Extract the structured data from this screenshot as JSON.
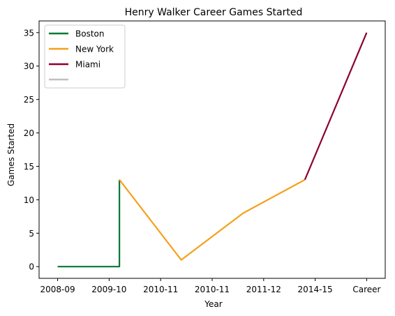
{
  "chart_data": {
    "type": "line",
    "title": "Henry Walker  Career Games Started",
    "xlabel": "Year",
    "ylabel": "Games Started",
    "x_tick_labels": [
      "2008-09",
      "2009-10",
      "2010-11",
      "2010-11",
      "2011-12",
      "2014-15",
      "Career"
    ],
    "ylim": [
      -1.75,
      36.75
    ],
    "y_ticks": [
      0,
      5,
      10,
      15,
      20,
      25,
      30,
      35
    ],
    "grid": false,
    "legend_position": "top-left",
    "series": [
      {
        "name": "Boston",
        "color": "#007A33",
        "points": [
          [
            0,
            0
          ],
          [
            0.5,
            0
          ],
          [
            1,
            0
          ],
          [
            1,
            13
          ]
        ]
      },
      {
        "name": "New York",
        "color": "#F5A01A",
        "points": [
          [
            1,
            13
          ],
          [
            2,
            1
          ],
          [
            3,
            8
          ],
          [
            4,
            13
          ]
        ]
      },
      {
        "name": "Miami",
        "color": "#8B0035",
        "points": [
          [
            4,
            13
          ],
          [
            5,
            35
          ]
        ]
      },
      {
        "name": "",
        "color": "#C0C0C0",
        "points": []
      }
    ]
  }
}
